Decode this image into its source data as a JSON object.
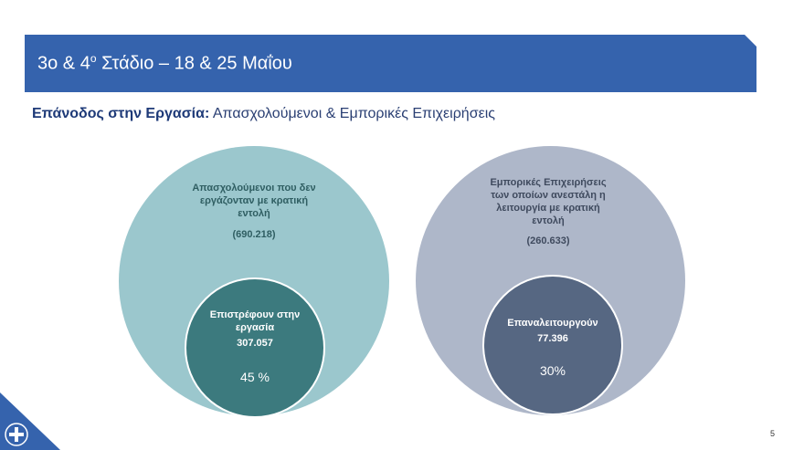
{
  "header": {
    "title_main": "3ο & 4",
    "title_sup": "ο",
    "title_rest": " Στάδιο – 18 & 25 Μαΐου"
  },
  "subtitle": {
    "bold": "Επάνοδος στην Εργασία:",
    "rest": " Απασχολούμενοι & Εμπορικές Επιχειρήσεις"
  },
  "employees": {
    "label": "Απασχολούμενοι που δεν εργάζονταν με κρατική εντολή",
    "total": "(690.218)",
    "returning_label": "Επιστρέφουν στην εργασία",
    "returning_value": "307.057",
    "percent": "45 %"
  },
  "businesses": {
    "label": "Εμπορικές Επιχειρήσεις των οποίων ανεστάλη η λειτουργία με κρατική εντολή",
    "total": "(260.633)",
    "reopening_label": "Επαναλειτουργούν",
    "reopening_value": "77.396",
    "percent": "30%"
  },
  "colors": {
    "header_blue": "#3563ad",
    "teal_light": "#9bc7cd",
    "teal_dark": "#3c7a7e",
    "slate_light": "#aeb7c9",
    "slate_dark": "#566782"
  },
  "footer": {
    "page_number": "5",
    "logo_icon": "greek-government-emblem-icon"
  }
}
